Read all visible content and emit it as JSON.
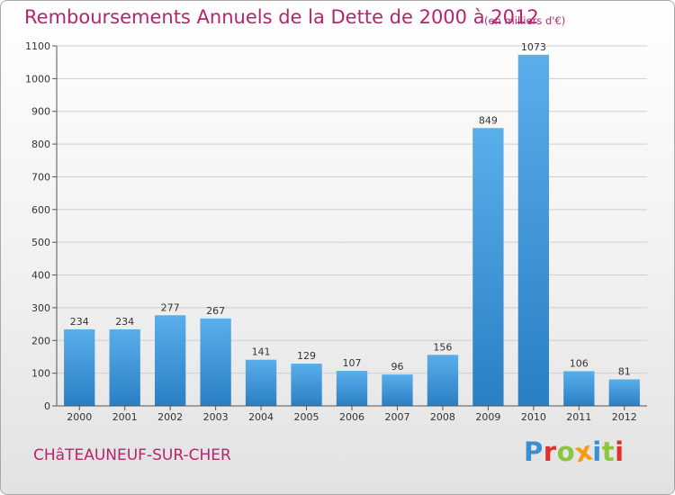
{
  "title": "Remboursements Annuels de la Dette de 2000 à 2012",
  "unit_note": "(en milliers d'€)",
  "commune": "CHâTEAUNEUF-SUR-CHER",
  "brand": {
    "name": "Proxiti",
    "letters": [
      {
        "char": "P",
        "color": "#3a8fd3"
      },
      {
        "char": "r",
        "color": "#e0322c"
      },
      {
        "char": "o",
        "color": "#8cc63f"
      },
      {
        "char": "x",
        "color": "#f39c12"
      },
      {
        "char": "i",
        "color": "#3a8fd3"
      },
      {
        "char": "t",
        "color": "#8cc63f"
      },
      {
        "char": "i",
        "color": "#e0322c"
      }
    ]
  },
  "colors": {
    "title": "#b5256e",
    "bar_top": "#5aaeea",
    "bar_bottom": "#2a7fc4",
    "grid": "#cfcfcf"
  },
  "chart_data": {
    "type": "bar",
    "categories": [
      "2000",
      "2001",
      "2002",
      "2003",
      "2004",
      "2005",
      "2006",
      "2007",
      "2008",
      "2009",
      "2010",
      "2011",
      "2012"
    ],
    "values": [
      234,
      234,
      277,
      267,
      141,
      129,
      107,
      96,
      156,
      849,
      1073,
      106,
      81
    ],
    "value_labels": [
      "234",
      "234",
      "277",
      "267",
      "141",
      "129",
      "107",
      "96",
      "156",
      "849",
      "1073",
      "106",
      "81"
    ],
    "ylim": [
      0,
      1100
    ],
    "yticks": [
      0,
      100,
      200,
      300,
      400,
      500,
      600,
      700,
      800,
      900,
      1000,
      1100
    ],
    "grid": true,
    "title": "Remboursements Annuels de la Dette de 2000 à 2012",
    "xlabel": "",
    "ylabel": ""
  }
}
